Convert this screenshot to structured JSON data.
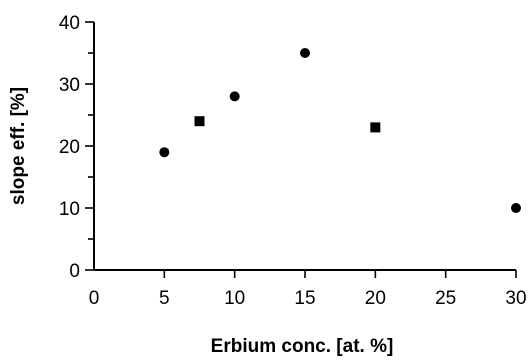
{
  "chart_data": {
    "type": "scatter",
    "xlabel": "Erbium conc. [at. %]",
    "ylabel": "slope eff. [%]",
    "xlim": [
      0,
      30
    ],
    "ylim": [
      0,
      40
    ],
    "x_ticks": [
      "0",
      "5",
      "10",
      "15",
      "20",
      "25",
      "30"
    ],
    "y_ticks": [
      "0",
      "10",
      "20",
      "30",
      "40"
    ],
    "grid": false,
    "series": [
      {
        "marker": "circle",
        "points": [
          {
            "x": 5,
            "y": 19
          },
          {
            "x": 10,
            "y": 28
          },
          {
            "x": 15,
            "y": 35
          },
          {
            "x": 30,
            "y": 10
          }
        ]
      },
      {
        "marker": "square",
        "points": [
          {
            "x": 7.5,
            "y": 24
          },
          {
            "x": 20,
            "y": 23
          }
        ]
      }
    ],
    "colors": {
      "marker": "#000000",
      "axis": "#000000"
    }
  }
}
